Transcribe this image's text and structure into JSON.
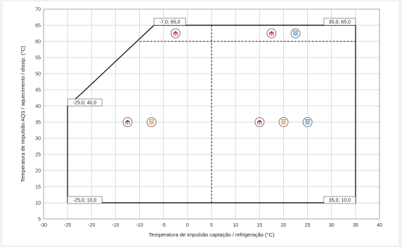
{
  "chart_data": {
    "type": "line",
    "title": "",
    "xlabel": "Temperatura de impulsão captação / refrigeração (°C)",
    "ylabel": "Temperatura de impulsão AQS / aquecimento / dissip. (°C)",
    "xlim": [
      -30,
      40
    ],
    "ylim": [
      5,
      70
    ],
    "xticks": [
      -30,
      -25,
      -20,
      -15,
      -10,
      -5,
      0,
      5,
      10,
      15,
      20,
      25,
      30,
      35,
      40
    ],
    "yticks": [
      5,
      10,
      15,
      20,
      25,
      30,
      35,
      40,
      45,
      50,
      55,
      60,
      65,
      70
    ],
    "grid": true,
    "series": [
      {
        "style": "solid",
        "color": "#222222",
        "points": [
          [
            -25,
            10
          ],
          [
            -25,
            40
          ],
          [
            -22,
            44
          ],
          [
            -7,
            65
          ],
          [
            35,
            65
          ],
          [
            35,
            10
          ],
          [
            -25,
            10
          ]
        ]
      },
      {
        "style": "dashed",
        "color": "#222222",
        "points": [
          [
            -10,
            60
          ],
          [
            35,
            60
          ]
        ]
      },
      {
        "style": "dashed",
        "color": "#222222",
        "points": [
          [
            5,
            10
          ],
          [
            5,
            65
          ]
        ]
      }
    ],
    "annotations": [
      {
        "text": "-25,0; 40,0",
        "x": -25,
        "y": 40,
        "anchor": "left"
      },
      {
        "text": "-7,0; 65,0",
        "x": -7,
        "y": 65,
        "anchor": "left"
      },
      {
        "text": "35,0; 65,0",
        "x": 35,
        "y": 65,
        "anchor": "right"
      },
      {
        "text": "-25,0; 10,0",
        "x": -25,
        "y": 10,
        "anchor": "left"
      },
      {
        "text": "35,0; 10,0",
        "x": 35,
        "y": 10,
        "anchor": "right"
      }
    ],
    "icons": [
      {
        "name": "house-heating-icon",
        "x": -2.5,
        "y": 62.5,
        "color": "#c0392b"
      },
      {
        "name": "house-heating-icon",
        "x": 17.5,
        "y": 62.5,
        "color": "#c0392b"
      },
      {
        "name": "water-heating-icon",
        "x": 22.5,
        "y": 62.5,
        "color": "#2e7fc9"
      },
      {
        "name": "house-heating-icon",
        "x": -12.5,
        "y": 35,
        "color": "#c0392b"
      },
      {
        "name": "water-heating-icon",
        "x": -7.5,
        "y": 35,
        "color": "#e07b1a"
      },
      {
        "name": "house-heating-icon",
        "x": 15,
        "y": 35,
        "color": "#c0392b"
      },
      {
        "name": "water-heating-icon",
        "x": 20,
        "y": 35,
        "color": "#e07b1a"
      },
      {
        "name": "water-heating-icon",
        "x": 25,
        "y": 35,
        "color": "#2e7fc9"
      }
    ]
  }
}
